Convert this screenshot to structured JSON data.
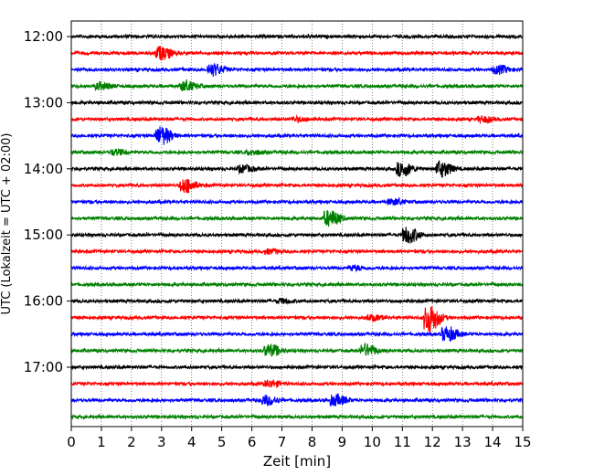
{
  "chart_data": {
    "type": "line",
    "title": "",
    "xlabel": "Zeit  [min]",
    "ylabel": "UTC (Lokalzeit = UTC + 02:00)",
    "xlim": [
      0,
      15
    ],
    "x_ticks": [
      "0",
      "1",
      "2",
      "3",
      "4",
      "5",
      "6",
      "7",
      "8",
      "9",
      "10",
      "11",
      "12",
      "13",
      "14",
      "15"
    ],
    "y_tick_labels": [
      "12:00",
      "13:00",
      "14:00",
      "15:00",
      "16:00",
      "17:00"
    ],
    "grid": "vertical dotted",
    "trace_interval_min": 15,
    "trace_colors": [
      "#000000",
      "#ff0000",
      "#0000ff",
      "#008000"
    ],
    "series": [
      {
        "start": "12:00",
        "color": "#000000",
        "events": []
      },
      {
        "start": "12:15",
        "color": "#ff0000",
        "events": [
          {
            "t": 3.0,
            "amp": 1.0
          }
        ]
      },
      {
        "start": "12:30",
        "color": "#0000ff",
        "events": [
          {
            "t": 4.7,
            "amp": 0.9
          },
          {
            "t": 14.2,
            "amp": 0.6
          }
        ]
      },
      {
        "start": "12:45",
        "color": "#008000",
        "events": [
          {
            "t": 1.0,
            "amp": 0.5
          },
          {
            "t": 3.8,
            "amp": 0.7
          }
        ]
      },
      {
        "start": "13:00",
        "color": "#000000",
        "events": []
      },
      {
        "start": "13:15",
        "color": "#ff0000",
        "events": [
          {
            "t": 7.5,
            "amp": 0.3
          },
          {
            "t": 13.7,
            "amp": 0.4
          }
        ]
      },
      {
        "start": "13:30",
        "color": "#0000ff",
        "events": [
          {
            "t": 3.0,
            "amp": 1.4
          }
        ]
      },
      {
        "start": "13:45",
        "color": "#008000",
        "events": [
          {
            "t": 1.5,
            "amp": 0.4
          },
          {
            "t": 6.0,
            "amp": 0.3
          }
        ]
      },
      {
        "start": "14:00",
        "color": "#000000",
        "events": [
          {
            "t": 5.7,
            "amp": 0.5
          },
          {
            "t": 11.0,
            "amp": 1.1
          },
          {
            "t": 12.3,
            "amp": 1.2
          }
        ]
      },
      {
        "start": "14:15",
        "color": "#ff0000",
        "events": [
          {
            "t": 3.8,
            "amp": 1.1
          }
        ]
      },
      {
        "start": "14:30",
        "color": "#0000ff",
        "events": [
          {
            "t": 10.7,
            "amp": 0.4
          }
        ]
      },
      {
        "start": "14:45",
        "color": "#008000",
        "events": [
          {
            "t": 8.6,
            "amp": 1.2
          }
        ]
      },
      {
        "start": "15:00",
        "color": "#000000",
        "events": [
          {
            "t": 11.2,
            "amp": 1.2
          }
        ]
      },
      {
        "start": "15:15",
        "color": "#ff0000",
        "events": [
          {
            "t": 6.6,
            "amp": 0.3
          }
        ]
      },
      {
        "start": "15:30",
        "color": "#0000ff",
        "events": [
          {
            "t": 9.4,
            "amp": 0.3
          }
        ]
      },
      {
        "start": "15:45",
        "color": "#008000",
        "events": []
      },
      {
        "start": "16:00",
        "color": "#000000",
        "events": [
          {
            "t": 7.0,
            "amp": 0.3
          }
        ]
      },
      {
        "start": "16:15",
        "color": "#ff0000",
        "events": [
          {
            "t": 11.9,
            "amp": 2.2
          },
          {
            "t": 10.0,
            "amp": 0.4
          }
        ]
      },
      {
        "start": "16:30",
        "color": "#0000ff",
        "events": [
          {
            "t": 12.5,
            "amp": 1.1
          }
        ]
      },
      {
        "start": "16:45",
        "color": "#008000",
        "events": [
          {
            "t": 6.6,
            "amp": 0.9
          },
          {
            "t": 9.8,
            "amp": 0.9
          }
        ]
      },
      {
        "start": "17:00",
        "color": "#000000",
        "events": []
      },
      {
        "start": "17:15",
        "color": "#ff0000",
        "events": [
          {
            "t": 6.6,
            "amp": 0.5
          }
        ]
      },
      {
        "start": "17:30",
        "color": "#0000ff",
        "events": [
          {
            "t": 6.5,
            "amp": 0.7
          },
          {
            "t": 8.8,
            "amp": 0.8
          }
        ]
      },
      {
        "start": "17:45",
        "color": "#008000",
        "events": []
      }
    ]
  }
}
